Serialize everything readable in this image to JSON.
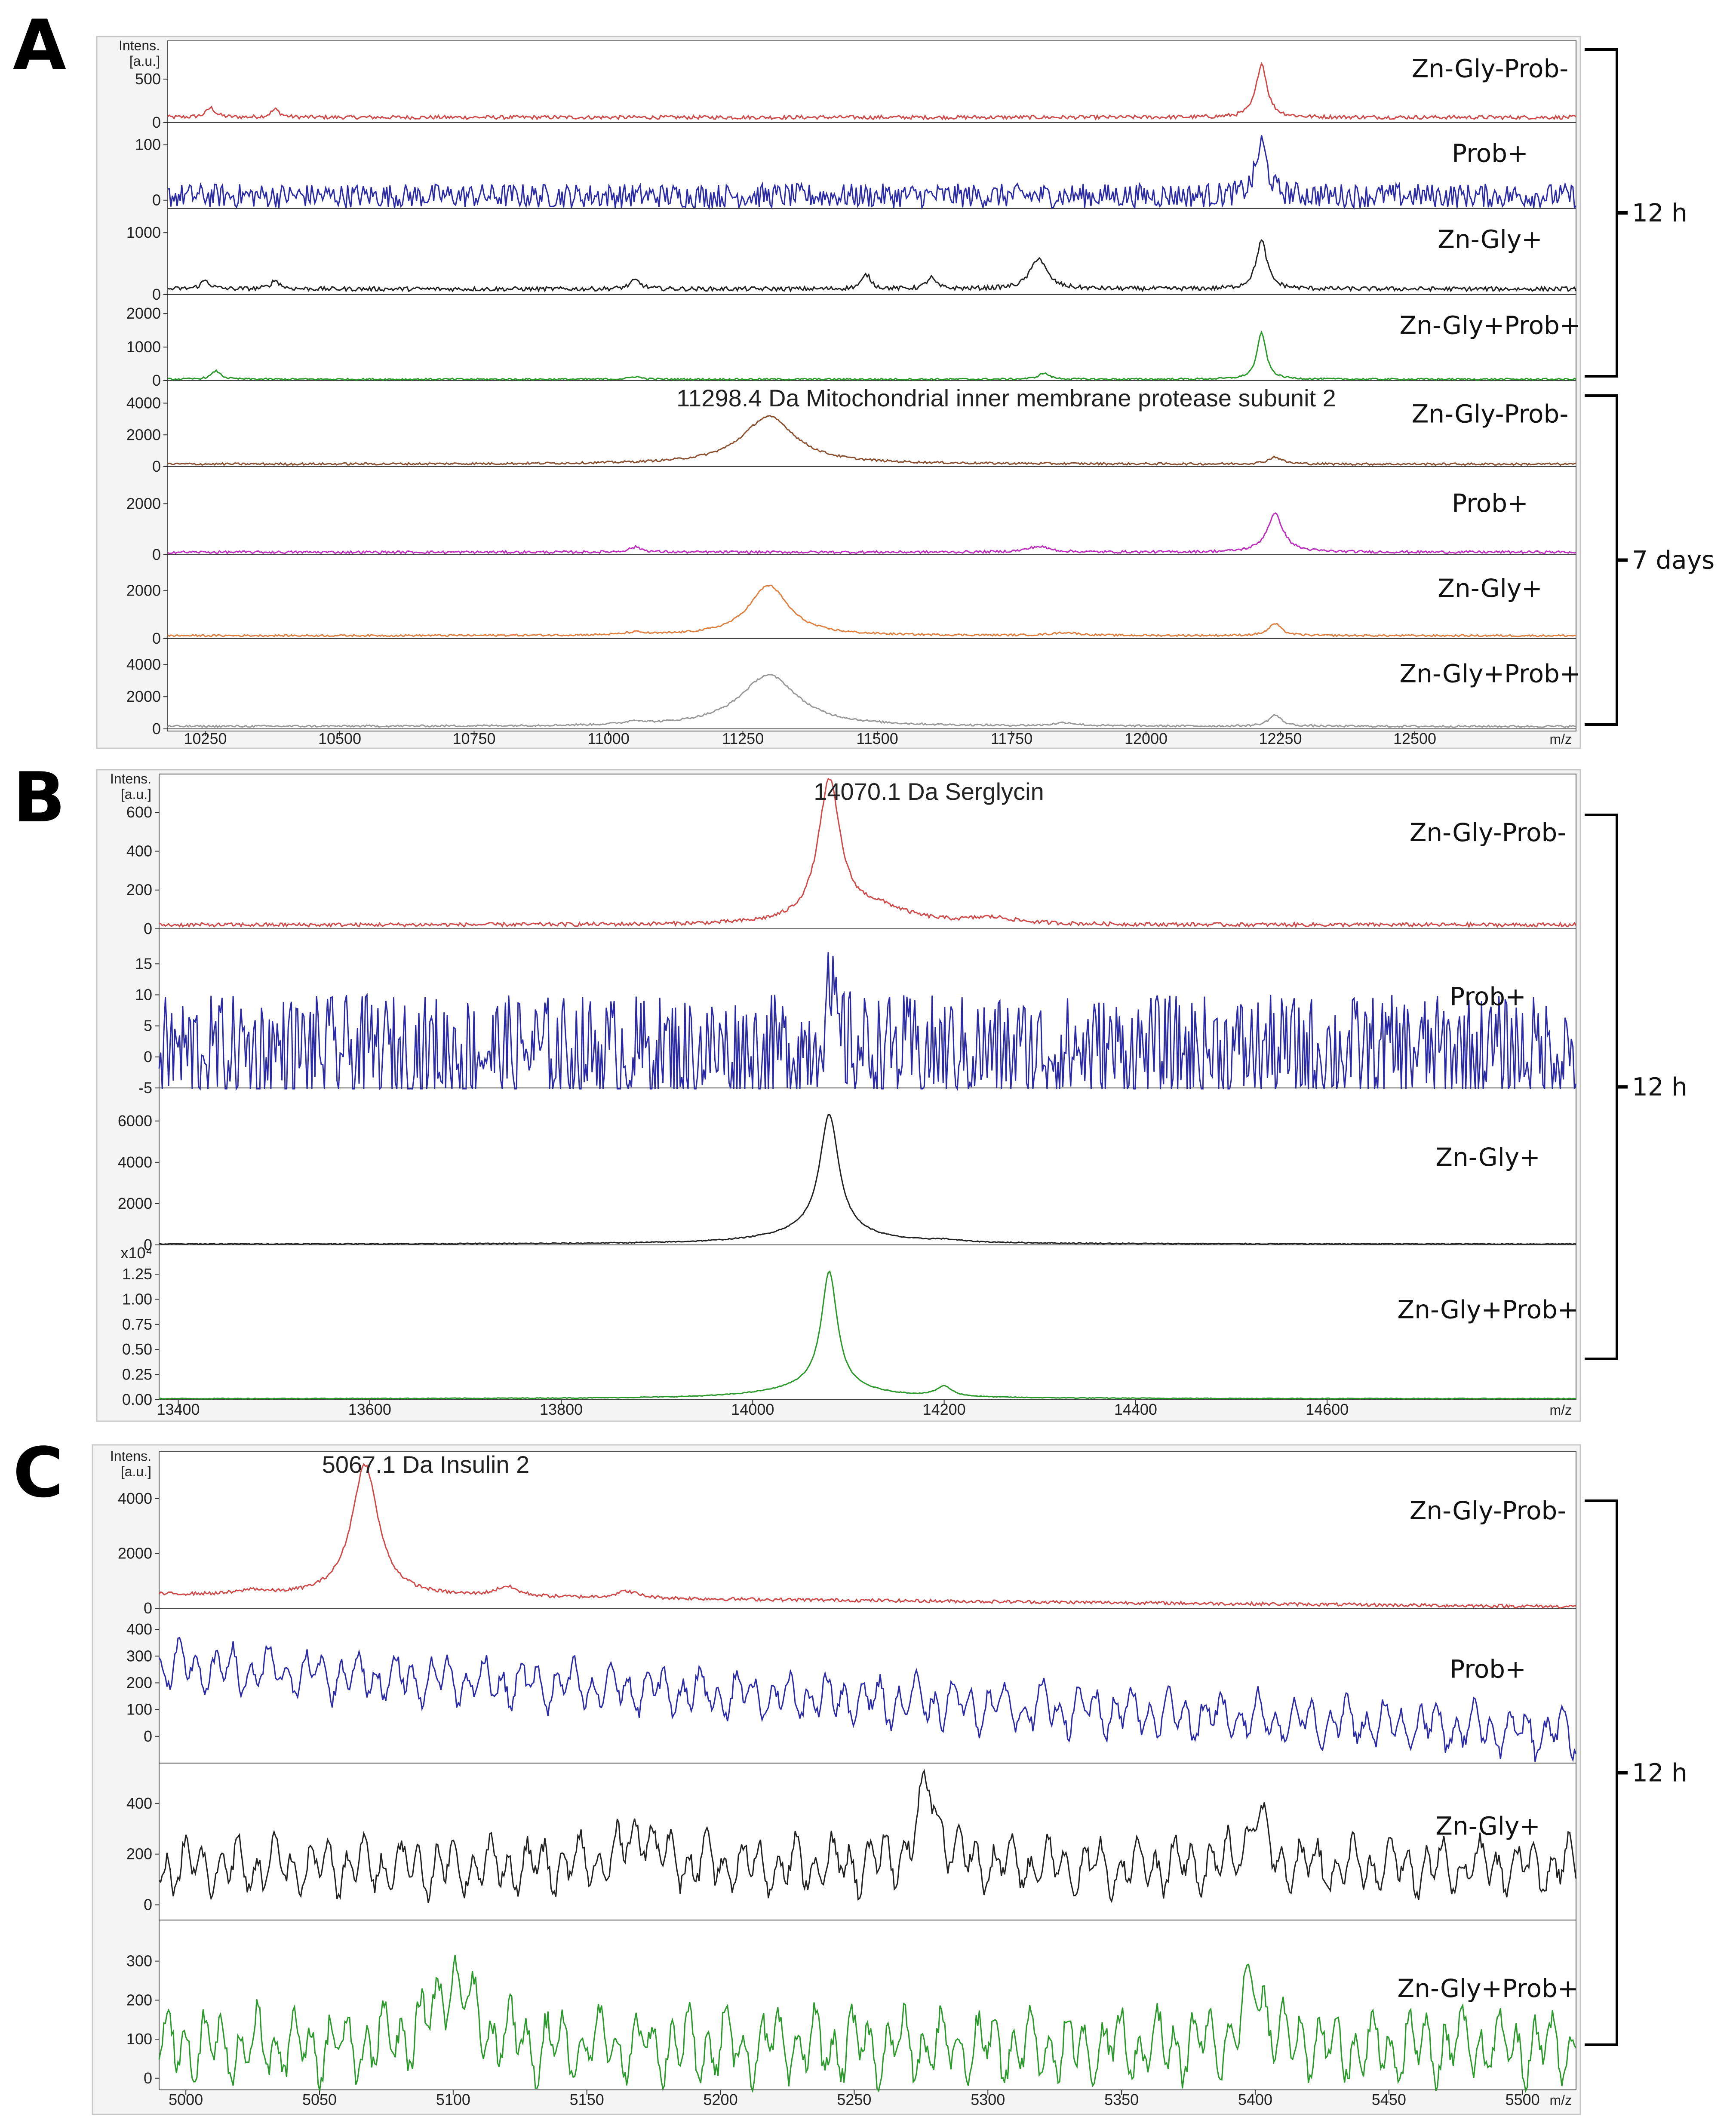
{
  "chart_data": [
    {
      "panel": "A",
      "type": "line",
      "ylabel": "Intens. [a.u.]",
      "xlabel": "m/z",
      "xlim": [
        10180,
        12800
      ],
      "xticks": [
        "10250",
        "10500",
        "10750",
        "11000",
        "11250",
        "11500",
        "11750",
        "12000",
        "12250",
        "12500"
      ],
      "annotation": "11298.4 Da Mitochondrial inner membrane protease subunit 2",
      "groups": [
        {
          "label": "12 h",
          "traces": [
            0,
            1,
            2,
            3
          ]
        },
        {
          "label": "7 days",
          "traces": [
            4,
            5,
            6,
            7
          ]
        }
      ],
      "traces": [
        {
          "name": "Zn-Gly-Prob-",
          "color": "#d04a4a",
          "ylim": [
            0,
            900
          ],
          "yticks": [
            "0",
            "500"
          ],
          "baseline": 60,
          "noise": 22,
          "peaks": [
            [
              12215,
              620,
              12
            ],
            [
              10260,
              110,
              10
            ],
            [
              10380,
              90,
              10
            ]
          ]
        },
        {
          "name": "Prob+",
          "color": "#2a2aa8",
          "ylim": [
            -15,
            130
          ],
          "yticks": [
            "0",
            "100"
          ],
          "baseline": 8,
          "noise": 22,
          "peaks": [
            [
              12215,
              95,
              12
            ]
          ]
        },
        {
          "name": "Zn-Gly+",
          "color": "#222222",
          "ylim": [
            0,
            1300
          ],
          "yticks": [
            "0",
            "1000"
          ],
          "baseline": 90,
          "noise": 35,
          "peaks": [
            [
              12215,
              780,
              12
            ],
            [
              11800,
              500,
              18
            ],
            [
              11480,
              230,
              10
            ],
            [
              11600,
              180,
              10
            ],
            [
              11050,
              140,
              12
            ],
            [
              10380,
              140,
              10
            ],
            [
              10250,
              140,
              10
            ]
          ]
        },
        {
          "name": "Zn-Gly+Prob+",
          "color": "#2a9a2a",
          "ylim": [
            0,
            2400
          ],
          "yticks": [
            "0",
            "1000",
            "2000"
          ],
          "baseline": 40,
          "noise": 25,
          "peaks": [
            [
              12215,
              1400,
              10
            ],
            [
              10270,
              250,
              10
            ],
            [
              11810,
              180,
              12
            ],
            [
              11050,
              80,
              12
            ]
          ]
        },
        {
          "name": "Zn-Gly-Prob-",
          "color": "#8b5030",
          "ylim": [
            0,
            4800
          ],
          "yticks": [
            "0",
            "2000",
            "4000"
          ],
          "baseline": 150,
          "noise": 70,
          "peaks": [
            [
              11298,
              3000,
              60
            ],
            [
              12240,
              450,
              15
            ]
          ]
        },
        {
          "name": "Prob+",
          "color": "#c030c0",
          "ylim": [
            0,
            2900
          ],
          "yticks": [
            "0",
            "2000"
          ],
          "baseline": 100,
          "noise": 50,
          "peaks": [
            [
              12240,
              1500,
              18
            ],
            [
              11800,
              220,
              25
            ],
            [
              11050,
              200,
              15
            ]
          ]
        },
        {
          "name": "Zn-Gly+",
          "color": "#e08040",
          "ylim": [
            0,
            3000
          ],
          "yticks": [
            "0",
            "2000"
          ],
          "baseline": 120,
          "noise": 40,
          "peaks": [
            [
              11298,
              2100,
              45
            ],
            [
              12240,
              500,
              14
            ],
            [
              11050,
              100,
              20
            ],
            [
              11850,
              120,
              30
            ]
          ]
        },
        {
          "name": "Zn-Gly+Prob+",
          "color": "#999999",
          "ylim": [
            0,
            5000
          ],
          "yticks": [
            "0",
            "2000",
            "4000"
          ],
          "baseline": 150,
          "noise": 60,
          "peaks": [
            [
              11298,
              3200,
              65
            ],
            [
              12240,
              700,
              14
            ],
            [
              11050,
              200,
              20
            ],
            [
              11850,
              200,
              25
            ]
          ]
        }
      ]
    },
    {
      "panel": "B",
      "type": "line",
      "ylabel": "Intens. [a.u.]",
      "xlabel": "m/z",
      "xlim": [
        13380,
        14860
      ],
      "xticks": [
        "13400",
        "13600",
        "13800",
        "14000",
        "14200",
        "14400",
        "14600"
      ],
      "annotation": "14070.1 Da  Serglycin",
      "groups": [
        {
          "label": "12 h",
          "traces": [
            0,
            1,
            2,
            3
          ]
        }
      ],
      "traces": [
        {
          "name": "Zn-Gly-Prob-",
          "color": "#d04a4a",
          "ylim": [
            0,
            780
          ],
          "yticks": [
            "0",
            "200",
            "400",
            "600"
          ],
          "baseline": 20,
          "noise": 10,
          "peaks": [
            [
              14080,
              720,
              14
            ],
            [
              14130,
              80,
              40
            ],
            [
              14250,
              30,
              30
            ]
          ]
        },
        {
          "name": "Prob+",
          "color": "#2a2aa8",
          "ylim": [
            -5,
            18
          ],
          "yticks": [
            "-5",
            "0",
            "5",
            "10",
            "15"
          ],
          "baseline": 1,
          "noise": 9,
          "peaks": [
            [
              14080,
              8,
              8
            ]
          ]
        },
        {
          "name": "Zn-Gly+",
          "color": "#222222",
          "ylim": [
            0,
            6600
          ],
          "yticks": [
            "0",
            "2000",
            "4000",
            "6000"
          ],
          "baseline": 40,
          "noise": 25,
          "peaks": [
            [
              14080,
              5700,
              12
            ],
            [
              14070,
              600,
              60
            ],
            [
              14200,
              100,
              20
            ]
          ]
        },
        {
          "name": "Zn-Gly+Prob+",
          "color": "#2a9a2a",
          "ylim": [
            0,
            1.4
          ],
          "yticks": [
            "0.00",
            "0.25",
            "0.50",
            "0.75",
            "1.00",
            "1.25"
          ],
          "yexp": "x10⁴",
          "baseline": 0.01,
          "noise": 0.004,
          "peaks": [
            [
              14080,
              1.15,
              10
            ],
            [
              14070,
              0.12,
              60
            ],
            [
              14200,
              0.1,
              10
            ]
          ]
        }
      ]
    },
    {
      "panel": "C",
      "type": "line",
      "ylabel": "Intens. [a.u.]",
      "xlabel": "m/z",
      "xlim": [
        4990,
        5520
      ],
      "xticks": [
        "5000",
        "5050",
        "5100",
        "5150",
        "5200",
        "5250",
        "5300",
        "5350",
        "5400",
        "5450",
        "5500"
      ],
      "annotation": "5067.1 Da Insulin 2",
      "groups": [
        {
          "label": "12 h",
          "traces": [
            0,
            1,
            2,
            3
          ]
        }
      ],
      "traces": [
        {
          "name": "Zn-Gly-Prob-",
          "color": "#d04a4a",
          "ylim": [
            0,
            5600
          ],
          "yticks": [
            "0",
            "2000",
            "4000"
          ],
          "baseline": 200,
          "noise": 60,
          "slope": [
            500,
            60
          ],
          "peaks": [
            [
              5067,
              4800,
              6
            ],
            [
              5120,
              350,
              5
            ],
            [
              5165,
              250,
              5
            ],
            [
              5025,
              150,
              5
            ]
          ]
        },
        {
          "name": "Prob+",
          "color": "#2a2aa8",
          "ylim": [
            -100,
            450
          ],
          "yticks": [
            "0",
            "100",
            "200",
            "300",
            "400"
          ],
          "baseline": 60,
          "noise": 110,
          "slope": [
            260,
            10
          ],
          "osc": true,
          "peaks": []
        },
        {
          "name": "Zn-Gly+",
          "color": "#222222",
          "ylim": [
            -60,
            520
          ],
          "yticks": [
            "0",
            "200",
            "400"
          ],
          "baseline": 150,
          "noise": 130,
          "osc": true,
          "peaks": [
            [
              5278,
              300,
              5
            ],
            [
              5400,
              200,
              4
            ],
            [
              5170,
              150,
              6
            ]
          ]
        },
        {
          "name": "Zn-Gly+Prob+",
          "color": "#2a9a2a",
          "ylim": [
            -30,
            380
          ],
          "yticks": [
            "0",
            "100",
            "200",
            "300"
          ],
          "baseline": 80,
          "noise": 110,
          "osc": true,
          "peaks": [
            [
              5100,
              180,
              8
            ],
            [
              5400,
              160,
              5
            ]
          ]
        }
      ]
    }
  ]
}
